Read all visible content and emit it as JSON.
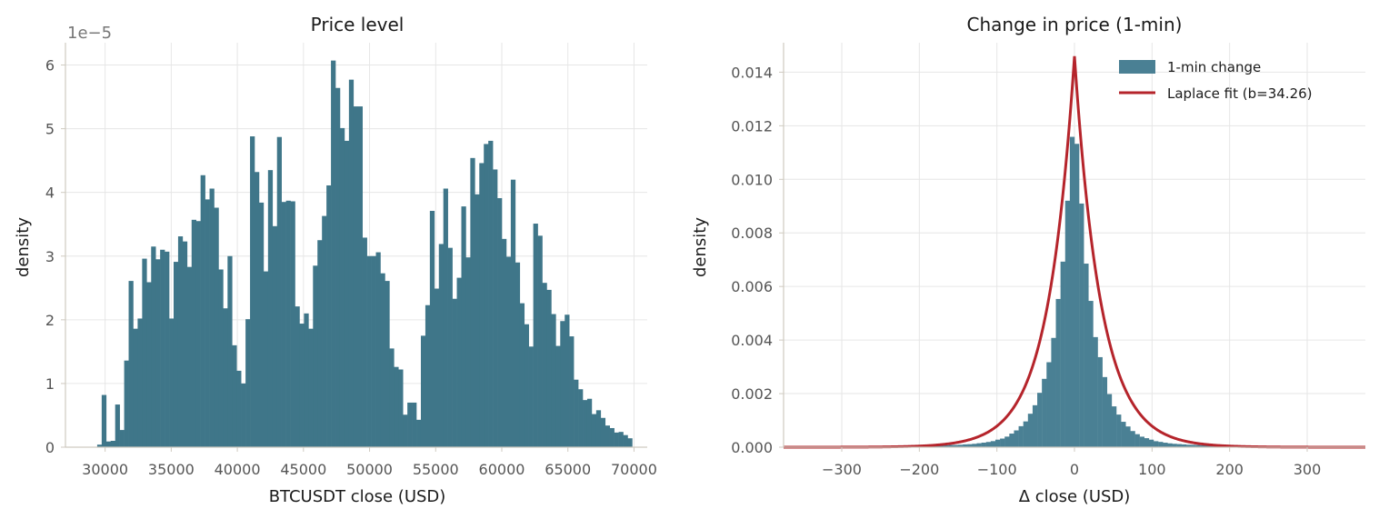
{
  "charts": [
    {
      "title": "Price level",
      "xlabel": "BTCUSDT close (USD)",
      "ylabel": "density",
      "y_offset_text": "1e−5",
      "xticks": [
        "30000",
        "35000",
        "40000",
        "45000",
        "50000",
        "55000",
        "60000",
        "65000",
        "70000"
      ],
      "yticks": [
        "0",
        "1",
        "2",
        "3",
        "4",
        "5",
        "6"
      ]
    },
    {
      "title": "Change in price (1-min)",
      "xlabel": "Δ close (USD)",
      "ylabel": "density",
      "xticks": [
        "−300",
        "−200",
        "−100",
        "0",
        "100",
        "200",
        "300"
      ],
      "yticks": [
        "0.000",
        "0.002",
        "0.004",
        "0.006",
        "0.008",
        "0.010",
        "0.012",
        "0.014"
      ],
      "legend": {
        "hist": "1-min change",
        "fit": "Laplace fit (b=34.26)"
      }
    }
  ],
  "colors": {
    "bar": "#3f7689",
    "bar2": "#4a8094",
    "fit": "#b5242b"
  },
  "chart_data": [
    {
      "type": "bar",
      "title": "Price level",
      "xlabel": "BTCUSDT close (USD)",
      "ylabel": "density",
      "y_scale_factor": 1e-05,
      "xlim": [
        27000,
        71000
      ],
      "ylim": [
        0,
        6.35
      ],
      "bin_start": 29400,
      "bin_width": 340,
      "values": [
        0.04,
        0.82,
        0.09,
        0.1,
        0.67,
        0.27,
        1.36,
        2.61,
        1.86,
        2.02,
        2.96,
        2.59,
        3.15,
        2.95,
        3.1,
        3.07,
        2.02,
        2.91,
        3.31,
        3.23,
        2.83,
        3.57,
        3.55,
        4.27,
        3.89,
        4.06,
        3.76,
        2.79,
        2.18,
        3.0,
        1.6,
        1.2,
        1.0,
        2.01,
        4.88,
        4.32,
        3.84,
        2.76,
        4.35,
        3.47,
        4.87,
        3.85,
        3.87,
        3.86,
        2.21,
        1.94,
        2.1,
        1.86,
        2.85,
        3.25,
        3.63,
        4.11,
        6.07,
        5.64,
        5.01,
        4.81,
        5.77,
        5.35,
        5.35,
        3.29,
        3.0,
        3.0,
        3.06,
        2.73,
        2.61,
        1.55,
        1.26,
        1.22,
        0.51,
        0.7,
        0.7,
        0.43,
        1.75,
        2.23,
        3.71,
        2.49,
        3.19,
        4.06,
        3.13,
        2.33,
        2.66,
        3.78,
        2.98,
        4.54,
        3.97,
        4.46,
        4.76,
        4.81,
        4.36,
        3.91,
        3.27,
        2.99,
        4.2,
        2.9,
        2.26,
        1.93,
        1.58,
        3.51,
        3.32,
        2.58,
        2.47,
        2.09,
        1.59,
        1.98,
        2.08,
        1.74,
        1.06,
        0.91,
        0.74,
        0.76,
        0.52,
        0.58,
        0.46,
        0.34,
        0.3,
        0.23,
        0.24,
        0.19,
        0.14
      ]
    },
    {
      "type": "bar",
      "title": "Change in price (1-min)",
      "xlabel": "Δ close (USD)",
      "ylabel": "density",
      "xlim": [
        -375,
        375
      ],
      "ylim": [
        0,
        0.0151
      ],
      "series": [
        {
          "name": "1-min change",
          "kind": "histogram",
          "bin_width": 6,
          "peak_value": 0.0131,
          "note_shape": "laplace-like"
        },
        {
          "name": "Laplace fit (b=34.26)",
          "kind": "line",
          "loc": 0,
          "scale": 34.26
        }
      ]
    }
  ]
}
